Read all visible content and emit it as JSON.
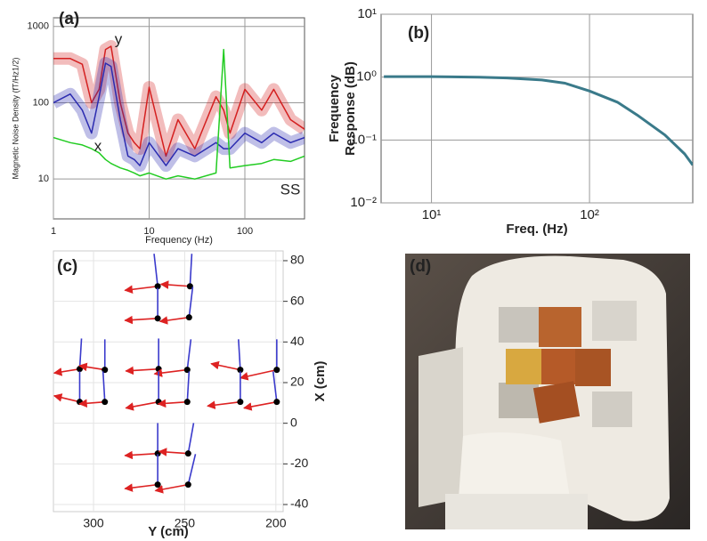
{
  "chart_data": [
    {
      "type": "line",
      "label": "(a)",
      "x_label": "Frequency (Hz)",
      "y_label": "Magnetic Noise Density (fT/Hz1/2)",
      "log_x": true,
      "log_y": true,
      "grid": true,
      "xlim": [
        1,
        420
      ],
      "ylim": [
        3,
        1300
      ],
      "xticks": [
        1,
        10,
        100
      ],
      "yticks": [
        10,
        100,
        1000
      ],
      "x": [
        1,
        1.5,
        2,
        2.5,
        3,
        3.5,
        4,
        5,
        6,
        7,
        8,
        10,
        15,
        20,
        30,
        50,
        60,
        70,
        100,
        150,
        200,
        300,
        420
      ],
      "series": [
        {
          "name": "y",
          "color": "#d42020",
          "band": true,
          "values": [
            380,
            380,
            320,
            100,
            150,
            500,
            550,
            100,
            40,
            30,
            25,
            160,
            20,
            60,
            25,
            120,
            80,
            40,
            150,
            80,
            150,
            60,
            45
          ]
        },
        {
          "name": "x",
          "color": "#2b2bb0",
          "band": true,
          "values": [
            100,
            130,
            80,
            40,
            120,
            330,
            300,
            60,
            20,
            18,
            15,
            30,
            15,
            25,
            20,
            30,
            25,
            25,
            40,
            30,
            40,
            30,
            35
          ]
        },
        {
          "name": "SS",
          "color": "#22cc22",
          "band": false,
          "values": [
            35,
            30,
            28,
            25,
            22,
            18,
            16,
            14,
            13,
            12,
            11,
            12,
            10,
            11,
            10,
            12,
            500,
            14,
            15,
            16,
            18,
            17,
            20
          ]
        }
      ]
    },
    {
      "type": "line",
      "label": "(b)",
      "x_label": "Freq. (Hz)",
      "y_label": [
        "Frequency",
        "Response (dB)"
      ],
      "log_x": true,
      "log_y": true,
      "grid": true,
      "xlim": [
        4.8,
        450
      ],
      "ylim": [
        0.01,
        10
      ],
      "xticks": [
        {
          "value": 10,
          "label": "10¹"
        },
        {
          "value": 100,
          "label": "10²"
        }
      ],
      "yticks": [
        {
          "value": 0.01,
          "label": "10⁻²"
        },
        {
          "value": 0.1,
          "label": "10⁻¹"
        },
        {
          "value": 1,
          "label": "10⁰"
        },
        {
          "value": 10,
          "label": "10¹"
        }
      ],
      "x": [
        5,
        10,
        20,
        30,
        50,
        70,
        100,
        150,
        200,
        300,
        400,
        450
      ],
      "series": [
        {
          "color": "#3a7a8a",
          "band": false,
          "values": [
            1.02,
            1.02,
            1.0,
            0.97,
            0.9,
            0.8,
            0.6,
            0.4,
            0.25,
            0.12,
            0.06,
            0.04
          ]
        }
      ]
    },
    {
      "type": "vector",
      "label": "(c)",
      "x_label": "Y (cm)",
      "y_label": "X (cm)",
      "grid": true,
      "xlim": [
        322,
        196
      ],
      "ylim": [
        -43.5,
        84.8
      ],
      "xticks": [
        300,
        250,
        200
      ],
      "yticks": [
        -40,
        -20,
        0,
        20,
        40,
        60,
        80
      ],
      "dot_color": "#000000",
      "arrow_color": "#dd2222",
      "line_color": "#3a3acc",
      "x": [
        264.8,
        247.1,
        264.8,
        247.6,
        307.6,
        293.8,
        307.6,
        293.8,
        264.3,
        248.6,
        264.3,
        248.6,
        219.5,
        199.5,
        219.5,
        199.5,
        264.8,
        248.1,
        264.8,
        248.1
      ],
      "y": [
        67.4,
        67.4,
        51.6,
        52.1,
        26.7,
        26.3,
        10.5,
        10.5,
        26.7,
        26.3,
        10.5,
        10.5,
        26.3,
        26.3,
        10.5,
        10.5,
        -14.9,
        -14.9,
        -30.2,
        -30.2
      ],
      "red_u": [
        18,
        16,
        18,
        16,
        14,
        14,
        14,
        14,
        18,
        18,
        18,
        16,
        16,
        20,
        18,
        18,
        18,
        16,
        18,
        18
      ],
      "red_v": [
        -2,
        1,
        -1,
        -2,
        -2,
        2,
        3,
        -1,
        -1,
        -2,
        -3,
        -1,
        3,
        -4,
        -2,
        -3,
        -1,
        1,
        -2,
        -3
      ],
      "blue_u": [
        2,
        -1,
        0,
        -2,
        -1,
        0,
        0,
        1,
        0,
        -2,
        0,
        -1,
        1,
        0,
        0,
        2,
        0,
        -3,
        0,
        -4
      ],
      "blue_v": [
        16,
        16,
        15,
        15,
        15,
        15,
        15,
        15,
        15,
        15,
        15,
        15,
        15,
        15,
        15,
        15,
        15,
        15,
        15,
        15
      ]
    },
    {
      "type": "image",
      "label": "(d)"
    }
  ]
}
